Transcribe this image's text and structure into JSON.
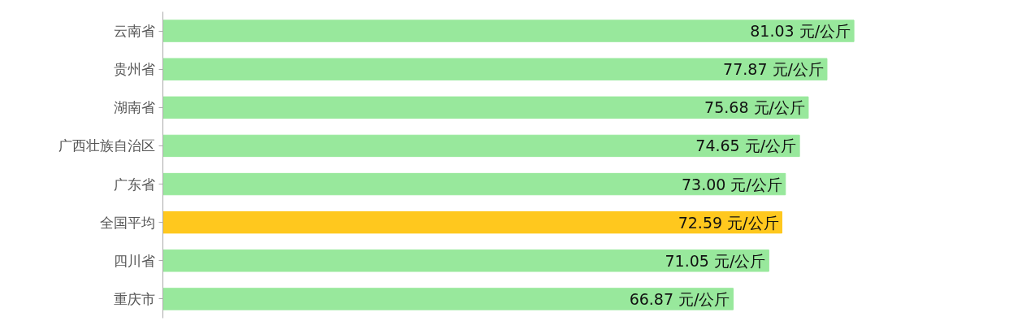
{
  "chart_data": {
    "type": "bar",
    "orientation": "horizontal",
    "categories": [
      "云南省",
      "贵州省",
      "湖南省",
      "广西壮族自治区",
      "广东省",
      "全国平均",
      "四川省",
      "重庆市"
    ],
    "values": [
      81.03,
      77.87,
      75.68,
      74.65,
      73.0,
      72.59,
      71.05,
      66.87
    ],
    "colors": [
      "#98e89c",
      "#98e89c",
      "#98e89c",
      "#98e89c",
      "#98e89c",
      "#ffc81e",
      "#98e89c",
      "#98e89c"
    ],
    "value_labels": [
      "81.03 元/公斤",
      "77.87 元/公斤",
      "75.68 元/公斤",
      "74.65 元/公斤",
      "73.00 元/公斤",
      "72.59 元/公斤",
      "71.05 元/公斤",
      "66.87 元/公斤"
    ],
    "grid": false
  }
}
